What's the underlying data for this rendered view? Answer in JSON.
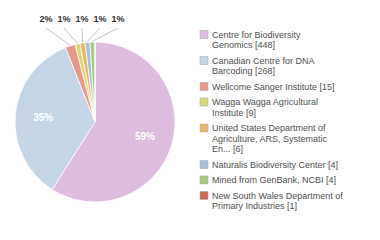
{
  "chart_data": {
    "type": "pie",
    "categories": [
      "Centre for Biodiversity\nGenomics [448]",
      "Canadian Centre for DNA\nBarcoding [268]",
      "Wellcome Sanger Institute [15]",
      "Wagga Wagga Agricultural\nInstitute [9]",
      "United States Department of\nAgriculture, ARS, Systematic\nEn... [6]",
      "Naturalis Biodiversity Center [4]",
      "Mined from GenBank, NCBI [4]",
      "New South Wales Department of\nPrimary Industries [1]"
    ],
    "values": [
      59,
      35,
      2,
      1,
      1,
      1,
      1,
      0
    ],
    "value_labels": [
      "59%",
      "35%",
      "2%",
      "1%",
      "1%",
      "1%",
      "1%",
      null
    ],
    "colors": [
      "#ddbddd",
      "#c5d5e5",
      "#e89888",
      "#d8d878",
      "#e8b868",
      "#a8c0d8",
      "#a8c888",
      "#cc6858"
    ],
    "data_labels": true,
    "legend": "right"
  }
}
